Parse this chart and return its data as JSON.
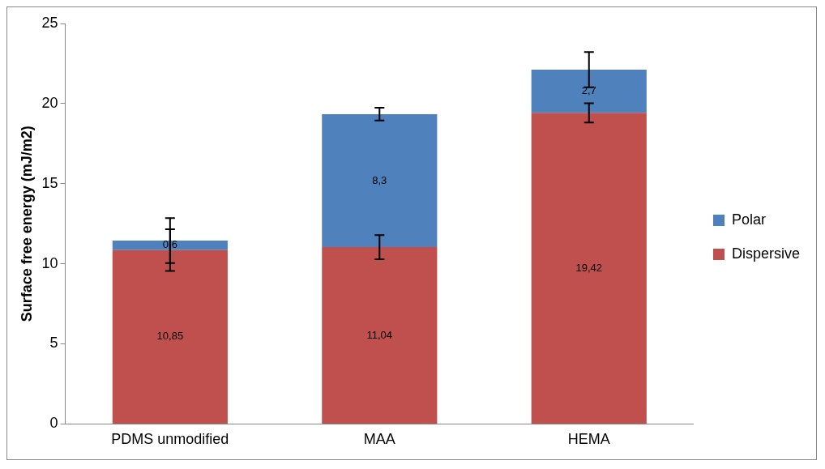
{
  "chart_data": {
    "type": "bar",
    "stacked": true,
    "ylabel": "Surface free energy (mJ/m2)",
    "categories": [
      "PDMS unmodified",
      "MAA",
      "HEMA"
    ],
    "series": [
      {
        "name": "Dispersive",
        "color": "#c0504d",
        "values": [
          10.85,
          11.04,
          19.42
        ],
        "value_labels": [
          "10,85",
          "11,04",
          "19,42"
        ],
        "errors": [
          1.3,
          0.75,
          0.6
        ]
      },
      {
        "name": "Polar",
        "color": "#4f81bd",
        "values": [
          0.6,
          8.3,
          2.7
        ],
        "value_labels": [
          "0,6",
          "8,3",
          "2,7"
        ],
        "errors": [
          1.4,
          0.4,
          1.1
        ]
      }
    ],
    "ylim": [
      0,
      25
    ],
    "yticks": [
      0,
      5,
      10,
      15,
      20,
      25
    ],
    "grid": false,
    "legend": "right"
  }
}
